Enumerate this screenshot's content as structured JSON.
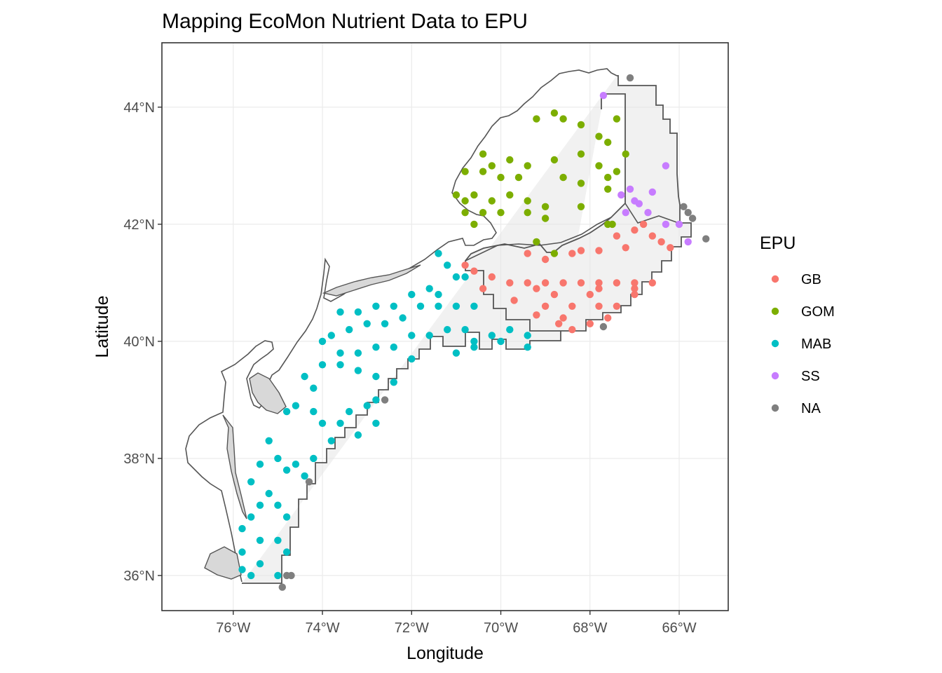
{
  "chart_data": {
    "type": "scatter",
    "title": "Mapping EcoMon Nutrient Data to EPU",
    "xlabel": "Longitude",
    "ylabel": "Latitude",
    "xlim": [
      -77.6,
      -64.9
    ],
    "ylim": [
      35.4,
      45.1
    ],
    "x_ticks": [
      {
        "value": -76,
        "label": "76°W"
      },
      {
        "value": -74,
        "label": "74°W"
      },
      {
        "value": -72,
        "label": "72°W"
      },
      {
        "value": -70,
        "label": "70°W"
      },
      {
        "value": -68,
        "label": "68°W"
      },
      {
        "value": -66,
        "label": "66°W"
      }
    ],
    "y_ticks": [
      {
        "value": 36,
        "label": "36°N"
      },
      {
        "value": 38,
        "label": "38°N"
      },
      {
        "value": 40,
        "label": "40°N"
      },
      {
        "value": 42,
        "label": "42°N"
      },
      {
        "value": 44,
        "label": "44°N"
      }
    ],
    "grid": true,
    "legend_title": "EPU",
    "legend_position": "right",
    "region_fill": "#e5e5e5",
    "region_stroke": "#555555",
    "series": [
      {
        "name": "GB",
        "color": "#F8766D",
        "points": [
          [
            -69.4,
            41.5
          ],
          [
            -69.0,
            41.4
          ],
          [
            -68.4,
            41.5
          ],
          [
            -68.2,
            41.55
          ],
          [
            -67.8,
            41.55
          ],
          [
            -67.4,
            41.8
          ],
          [
            -67.2,
            41.6
          ],
          [
            -67.0,
            41.9
          ],
          [
            -66.8,
            42.0
          ],
          [
            -66.6,
            41.8
          ],
          [
            -66.4,
            41.7
          ],
          [
            -66.2,
            41.6
          ],
          [
            -70.6,
            41.2
          ],
          [
            -70.2,
            41.1
          ],
          [
            -69.8,
            41.0
          ],
          [
            -69.4,
            41.0
          ],
          [
            -69.0,
            41.0
          ],
          [
            -68.6,
            41.0
          ],
          [
            -68.2,
            41.0
          ],
          [
            -67.8,
            41.0
          ],
          [
            -67.4,
            41.0
          ],
          [
            -67.0,
            41.0
          ],
          [
            -66.6,
            41.0
          ],
          [
            -70.4,
            40.9
          ],
          [
            -69.2,
            40.9
          ],
          [
            -68.8,
            40.8
          ],
          [
            -68.0,
            40.8
          ],
          [
            -67.8,
            40.9
          ],
          [
            -67.0,
            40.8
          ],
          [
            -69.7,
            40.7
          ],
          [
            -69.0,
            40.6
          ],
          [
            -68.4,
            40.6
          ],
          [
            -67.8,
            40.6
          ],
          [
            -67.4,
            40.6
          ],
          [
            -69.2,
            40.45
          ],
          [
            -68.6,
            40.4
          ],
          [
            -68.0,
            40.3
          ],
          [
            -67.6,
            40.4
          ],
          [
            -68.4,
            40.2
          ],
          [
            -67.0,
            40.9
          ],
          [
            -70.8,
            41.3
          ],
          [
            -68.7,
            40.3
          ]
        ]
      },
      {
        "name": "GOM",
        "color": "#7CAE00",
        "points": [
          [
            -69.2,
            43.8
          ],
          [
            -68.8,
            43.9
          ],
          [
            -68.6,
            43.8
          ],
          [
            -68.2,
            43.7
          ],
          [
            -67.8,
            43.5
          ],
          [
            -67.6,
            43.4
          ],
          [
            -67.4,
            43.8
          ],
          [
            -67.2,
            43.2
          ],
          [
            -70.4,
            43.2
          ],
          [
            -69.8,
            43.1
          ],
          [
            -69.4,
            43.0
          ],
          [
            -68.8,
            43.1
          ],
          [
            -68.2,
            43.2
          ],
          [
            -67.8,
            43.0
          ],
          [
            -67.6,
            42.8
          ],
          [
            -67.4,
            42.9
          ],
          [
            -70.8,
            42.9
          ],
          [
            -70.4,
            42.9
          ],
          [
            -70.0,
            42.8
          ],
          [
            -69.6,
            42.8
          ],
          [
            -68.6,
            42.8
          ],
          [
            -68.2,
            42.7
          ],
          [
            -67.6,
            42.6
          ],
          [
            -71.0,
            42.5
          ],
          [
            -70.8,
            42.4
          ],
          [
            -70.6,
            42.5
          ],
          [
            -70.2,
            42.4
          ],
          [
            -69.8,
            42.5
          ],
          [
            -69.4,
            42.4
          ],
          [
            -69.0,
            42.3
          ],
          [
            -68.2,
            42.3
          ],
          [
            -70.8,
            42.2
          ],
          [
            -70.4,
            42.2
          ],
          [
            -70.0,
            42.2
          ],
          [
            -69.4,
            42.2
          ],
          [
            -69.0,
            42.1
          ],
          [
            -67.6,
            42.0
          ],
          [
            -70.6,
            42.0
          ],
          [
            -69.2,
            41.7
          ],
          [
            -68.8,
            41.5
          ],
          [
            -70.2,
            43.0
          ],
          [
            -67.5,
            42.0
          ]
        ]
      },
      {
        "name": "MAB",
        "color": "#00BFC4",
        "points": [
          [
            -71.4,
            41.5
          ],
          [
            -71.2,
            41.3
          ],
          [
            -71.0,
            41.1
          ],
          [
            -70.8,
            41.1
          ],
          [
            -71.6,
            40.9
          ],
          [
            -72.0,
            40.8
          ],
          [
            -72.4,
            40.6
          ],
          [
            -72.8,
            40.6
          ],
          [
            -73.2,
            40.5
          ],
          [
            -73.6,
            40.5
          ],
          [
            -71.8,
            40.6
          ],
          [
            -71.4,
            40.6
          ],
          [
            -71.0,
            40.6
          ],
          [
            -70.6,
            40.6
          ],
          [
            -72.2,
            40.4
          ],
          [
            -72.6,
            40.3
          ],
          [
            -73.0,
            40.3
          ],
          [
            -73.4,
            40.2
          ],
          [
            -73.8,
            40.1
          ],
          [
            -74.0,
            40.0
          ],
          [
            -72.0,
            40.1
          ],
          [
            -71.6,
            40.1
          ],
          [
            -71.2,
            40.2
          ],
          [
            -70.8,
            40.2
          ],
          [
            -70.6,
            40.0
          ],
          [
            -70.2,
            40.1
          ],
          [
            -69.8,
            40.2
          ],
          [
            -69.4,
            40.1
          ],
          [
            -69.4,
            39.9
          ],
          [
            -72.4,
            39.9
          ],
          [
            -72.8,
            39.9
          ],
          [
            -73.2,
            39.8
          ],
          [
            -73.6,
            39.8
          ],
          [
            -74.0,
            39.6
          ],
          [
            -74.4,
            39.4
          ],
          [
            -73.6,
            39.6
          ],
          [
            -73.2,
            39.5
          ],
          [
            -72.8,
            39.4
          ],
          [
            -72.4,
            39.3
          ],
          [
            -72.0,
            39.7
          ],
          [
            -71.0,
            39.8
          ],
          [
            -70.6,
            39.9
          ],
          [
            -70.0,
            40.0
          ],
          [
            -74.6,
            38.9
          ],
          [
            -74.2,
            38.8
          ],
          [
            -74.0,
            38.6
          ],
          [
            -73.6,
            38.6
          ],
          [
            -73.2,
            38.4
          ],
          [
            -72.8,
            38.6
          ],
          [
            -73.4,
            38.8
          ],
          [
            -73.0,
            38.9
          ],
          [
            -74.8,
            38.8
          ],
          [
            -73.8,
            38.3
          ],
          [
            -74.2,
            38.0
          ],
          [
            -74.4,
            37.7
          ],
          [
            -74.6,
            37.9
          ],
          [
            -75.2,
            38.3
          ],
          [
            -75.0,
            38.0
          ],
          [
            -74.8,
            37.8
          ],
          [
            -75.4,
            37.9
          ],
          [
            -75.6,
            37.6
          ],
          [
            -75.2,
            37.4
          ],
          [
            -75.0,
            37.2
          ],
          [
            -74.8,
            37.0
          ],
          [
            -75.4,
            37.2
          ],
          [
            -75.6,
            37.0
          ],
          [
            -75.8,
            36.8
          ],
          [
            -75.4,
            36.6
          ],
          [
            -75.0,
            36.6
          ],
          [
            -74.8,
            36.4
          ],
          [
            -75.8,
            36.4
          ],
          [
            -75.4,
            36.2
          ],
          [
            -75.0,
            36.0
          ],
          [
            -75.6,
            36.0
          ],
          [
            -75.8,
            36.1
          ],
          [
            -72.8,
            39.0
          ],
          [
            -74.2,
            39.2
          ],
          [
            -71.4,
            40.8
          ]
        ]
      },
      {
        "name": "SS",
        "color": "#C77CFF",
        "points": [
          [
            -67.7,
            44.2
          ],
          [
            -67.3,
            42.5
          ],
          [
            -67.1,
            42.6
          ],
          [
            -67.0,
            42.4
          ],
          [
            -66.9,
            42.35
          ],
          [
            -66.6,
            42.55
          ],
          [
            -66.3,
            43.0
          ],
          [
            -67.2,
            42.2
          ],
          [
            -66.7,
            42.2
          ],
          [
            -66.3,
            42.0
          ],
          [
            -66.0,
            42.0
          ],
          [
            -65.8,
            41.7
          ]
        ]
      },
      {
        "name": "NA",
        "color": "#7F7F7F",
        "points": [
          [
            -67.1,
            44.5
          ],
          [
            -65.9,
            42.3
          ],
          [
            -65.8,
            42.2
          ],
          [
            -65.7,
            42.1
          ],
          [
            -65.4,
            41.75
          ],
          [
            -67.7,
            40.25
          ],
          [
            -72.6,
            39.0
          ],
          [
            -74.3,
            37.6
          ],
          [
            -74.8,
            36.0
          ],
          [
            -74.9,
            35.8
          ],
          [
            -74.7,
            36.0
          ]
        ]
      }
    ]
  }
}
